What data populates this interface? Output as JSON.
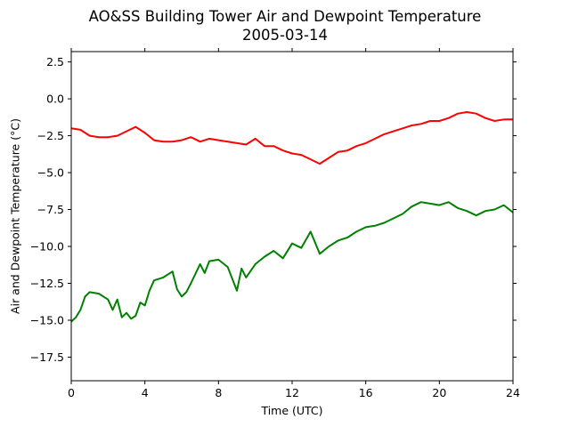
{
  "chart_data": {
    "type": "line",
    "title": "AO&SS Building Tower Air and Dewpoint Temperature",
    "subtitle": "2005-03-14",
    "xlabel": "Time (UTC)",
    "ylabel": "Air and Dewpoint Temperature (°C)",
    "xlim": [
      0,
      24
    ],
    "ylim": [
      -19.1,
      3.2
    ],
    "x_ticks": [
      0,
      4,
      8,
      12,
      16,
      20,
      24
    ],
    "x_tick_labels": [
      "0",
      "4",
      "8",
      "12",
      "16",
      "20",
      "24"
    ],
    "y_ticks": [
      2.5,
      0.0,
      -2.5,
      -5.0,
      -7.5,
      -10.0,
      -12.5,
      -15.0,
      -17.5
    ],
    "y_tick_labels": [
      "2.5",
      "0.0",
      "−2.5",
      "−5.0",
      "−7.5",
      "−10.0",
      "−12.5",
      "−15.0",
      "−17.5"
    ],
    "grid": false,
    "legend": "none",
    "series": [
      {
        "color": "#ff0000",
        "x": [
          0,
          0.5,
          1,
          1.5,
          2,
          2.5,
          3,
          3.5,
          4,
          4.5,
          5,
          5.5,
          6,
          6.5,
          7,
          7.5,
          8,
          8.5,
          9,
          9.5,
          10,
          10.5,
          11,
          11.5,
          12,
          12.5,
          13,
          13.5,
          14,
          14.5,
          15,
          15.5,
          16,
          16.5,
          17,
          17.5,
          18,
          18.5,
          19,
          19.5,
          20,
          20.5,
          21,
          21.5,
          22,
          22.5,
          23,
          23.5,
          24
        ],
        "y": [
          -2.0,
          -2.1,
          -2.5,
          -2.6,
          -2.6,
          -2.5,
          -2.2,
          -1.9,
          -2.3,
          -2.8,
          -2.9,
          -2.9,
          -2.8,
          -2.6,
          -2.9,
          -2.7,
          -2.8,
          -2.9,
          -3.0,
          -3.1,
          -2.7,
          -3.2,
          -3.2,
          -3.5,
          -3.7,
          -3.8,
          -4.1,
          -4.4,
          -4.0,
          -3.6,
          -3.5,
          -3.2,
          -3.0,
          -2.7,
          -2.4,
          -2.2,
          -2.0,
          -1.8,
          -1.7,
          -1.5,
          -1.5,
          -1.3,
          -1.0,
          -0.9,
          -1.0,
          -1.3,
          -1.5,
          -1.4,
          -1.4
        ]
      },
      {
        "color": "#008000",
        "x": [
          0,
          0.25,
          0.5,
          0.75,
          1,
          1.5,
          2,
          2.25,
          2.5,
          2.75,
          3,
          3.25,
          3.5,
          3.75,
          4,
          4.25,
          4.5,
          5,
          5.5,
          5.75,
          6,
          6.25,
          6.5,
          7,
          7.25,
          7.5,
          8,
          8.5,
          9,
          9.25,
          9.5,
          10,
          10.5,
          11,
          11.5,
          12,
          12.5,
          13,
          13.5,
          14,
          14.5,
          15,
          15.5,
          16,
          16.5,
          17,
          17.5,
          18,
          18.5,
          19,
          19.5,
          20,
          20.5,
          21,
          21.5,
          22,
          22.5,
          23,
          23.5,
          24
        ],
        "y": [
          -15.1,
          -14.8,
          -14.3,
          -13.4,
          -13.1,
          -13.2,
          -13.6,
          -14.3,
          -13.6,
          -14.8,
          -14.5,
          -14.9,
          -14.7,
          -13.8,
          -14.0,
          -13.0,
          -12.3,
          -12.1,
          -11.7,
          -12.9,
          -13.4,
          -13.1,
          -12.5,
          -11.2,
          -11.8,
          -11.0,
          -10.9,
          -11.4,
          -13.0,
          -11.5,
          -12.1,
          -11.2,
          -10.7,
          -10.3,
          -10.8,
          -9.8,
          -10.1,
          -9.0,
          -10.5,
          -10.0,
          -9.6,
          -9.4,
          -9.0,
          -8.7,
          -8.6,
          -8.4,
          -8.1,
          -7.8,
          -7.3,
          -7.0,
          -7.1,
          -7.2,
          -7.0,
          -7.4,
          -7.6,
          -7.9,
          -7.6,
          -7.5,
          -7.2,
          -7.7
        ]
      }
    ]
  }
}
